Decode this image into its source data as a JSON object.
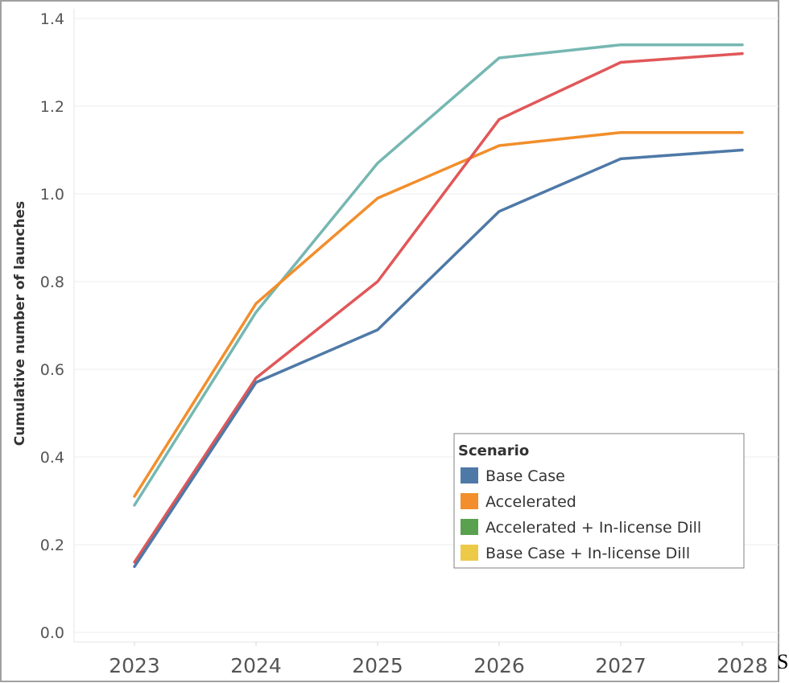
{
  "chart_data": {
    "type": "line",
    "title": "",
    "xlabel": "",
    "ylabel": "Cumulative number of launches",
    "categories": [
      "2023",
      "2024",
      "2025",
      "2026",
      "2027",
      "2028"
    ],
    "ylim": [
      0,
      1.4
    ],
    "yticks": [
      "0.0",
      "0.2",
      "0.4",
      "0.6",
      "0.8",
      "1.0",
      "1.2",
      "1.4"
    ],
    "grid": true,
    "legend": {
      "title": "Scenario",
      "placement": "bottom-right",
      "entries": [
        {
          "label": "Base Case",
          "color": "#4e79a7"
        },
        {
          "label": "Accelerated",
          "color": "#f28e2b"
        },
        {
          "label": "Accelerated + In-license Dill",
          "color": "#59a14f"
        },
        {
          "label": "Base Case + In-license Dill",
          "color": "#edc948"
        }
      ]
    },
    "series": [
      {
        "color": "#76b7b2",
        "values": [
          0.29,
          0.73,
          1.07,
          1.31,
          1.34,
          1.34
        ]
      },
      {
        "color": "#f28e2b",
        "values": [
          0.31,
          0.75,
          0.99,
          1.11,
          1.14,
          1.14
        ]
      },
      {
        "color": "#e15759",
        "values": [
          0.16,
          0.58,
          0.8,
          1.17,
          1.3,
          1.32
        ]
      },
      {
        "color": "#4e79a7",
        "values": [
          0.15,
          0.57,
          0.69,
          0.96,
          1.08,
          1.1
        ]
      }
    ]
  },
  "stray_text": "S"
}
